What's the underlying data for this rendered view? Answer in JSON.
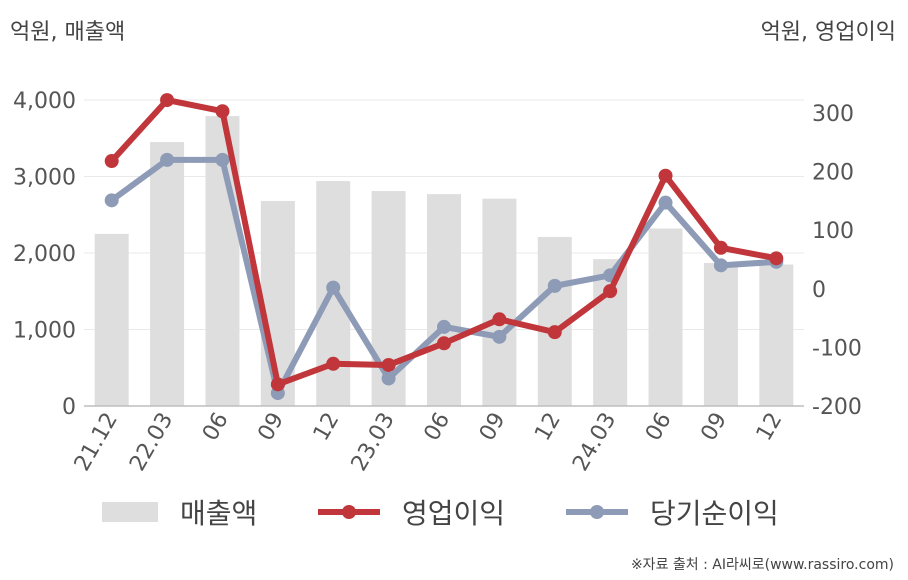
{
  "header": {
    "left_unit": "억원, 매출액",
    "right_unit": "억원, 영업이익"
  },
  "chart_data": {
    "type": "bar",
    "categories": [
      "21.12",
      "22.03",
      "06",
      "09",
      "12",
      "23.03",
      "06",
      "09",
      "12",
      "24.03",
      "06",
      "09",
      "12"
    ],
    "series": [
      {
        "name": "매출액",
        "type": "bar",
        "axis": "left",
        "color": "#dedede",
        "values": [
          2250,
          3450,
          3790,
          2680,
          2940,
          2810,
          2770,
          2710,
          2210,
          1920,
          2320,
          1870,
          1850
        ]
      },
      {
        "name": "영업이익",
        "type": "line",
        "axis": "right",
        "color": "#c0363a",
        "values": [
          218,
          322,
          303,
          -163,
          -128,
          -130,
          -93,
          -52,
          -74,
          -4,
          193,
          70,
          52
        ]
      },
      {
        "name": "당기순이익",
        "type": "line",
        "axis": "right",
        "color": "#8e9bb7",
        "values": [
          151,
          220,
          220,
          -178,
          2,
          -153,
          -65,
          -82,
          5,
          23,
          147,
          40,
          46
        ]
      }
    ],
    "y_left": {
      "ylim": [
        0,
        4000
      ],
      "ticks": [
        0,
        1000,
        2000,
        3000,
        4000
      ],
      "tick_labels": [
        "0",
        "1,000",
        "2,000",
        "3,000",
        "4,000"
      ]
    },
    "y_right": {
      "ylim": [
        -200,
        350
      ],
      "ticks": [
        -200,
        -100,
        0,
        100,
        200,
        300
      ],
      "tick_labels": [
        "-200",
        "-100",
        "0",
        "100",
        "200",
        "300"
      ]
    },
    "grid": true,
    "legend_position": "bottom"
  },
  "legend": {
    "items": [
      {
        "label": "매출액",
        "kind": "bar",
        "color": "#dedede"
      },
      {
        "label": "영업이익",
        "kind": "line",
        "color": "#c0363a"
      },
      {
        "label": "당기순이익",
        "kind": "line",
        "color": "#8e9bb7"
      }
    ]
  },
  "footer": {
    "source": "※자료 출처 : AI라씨로(www.rassiro.com)"
  }
}
